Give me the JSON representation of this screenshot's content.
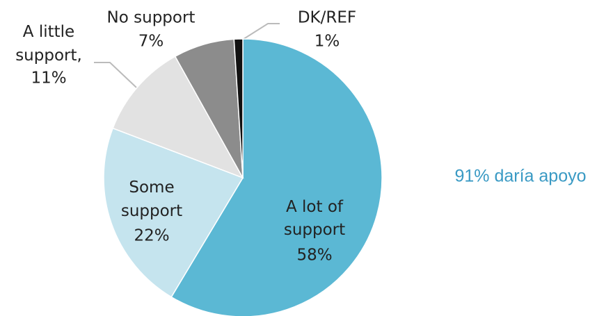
{
  "chart_data": {
    "type": "pie",
    "categories": [
      "A lot of support",
      "Some support",
      "A little support,",
      "No support",
      "DK/REF"
    ],
    "values": [
      58,
      22,
      11,
      7,
      1
    ],
    "value_labels": [
      "58%",
      "22%",
      "11%",
      "7%",
      "1%"
    ],
    "colors": [
      "#5bb8d4",
      "#c5e4ee",
      "#e2e2e2",
      "#8c8c8c",
      "#111111"
    ],
    "annotation": "91% daría apoyo"
  }
}
